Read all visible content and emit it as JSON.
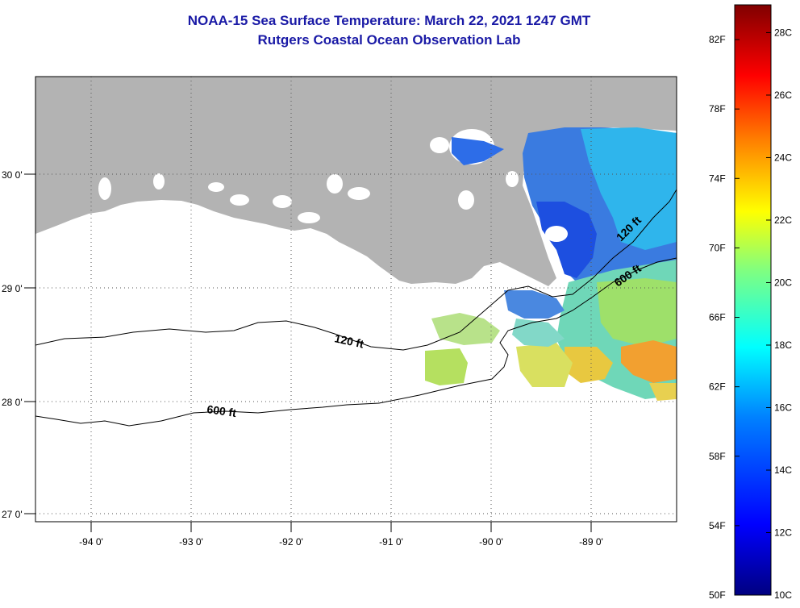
{
  "title": {
    "line1": "NOAA-15 Sea Surface Temperature:  March 22, 2021 1247 GMT",
    "line2": "Rutgers Coastal Ocean Observation Lab"
  },
  "map": {
    "longitude_labels": [
      "-94 0'",
      "-93 0'",
      "-92 0'",
      "-91 0'",
      "-90 0'",
      "-89 0'"
    ],
    "latitude_labels": [
      "30 0'",
      "29 0'",
      "28 0'",
      "27 0'"
    ],
    "contour_labels": [
      "120 ft",
      "120 ft",
      "600 ft",
      "600 ft"
    ],
    "land_color": "#b3b3b3",
    "water_color": "#ffffff"
  },
  "colorbar": {
    "fahrenheit_labels": [
      "82F",
      "78F",
      "74F",
      "70F",
      "66F",
      "62F",
      "58F",
      "54F",
      "50F"
    ],
    "celsius_labels": [
      "28C",
      "26C",
      "24C",
      "22C",
      "20C",
      "18C",
      "16C",
      "14C",
      "12C",
      "10C"
    ],
    "colors": [
      "#000080",
      "#0000ff",
      "#00a0ff",
      "#00ffff",
      "#80ff80",
      "#ffff00",
      "#ff8000",
      "#ff0000",
      "#800000"
    ]
  }
}
